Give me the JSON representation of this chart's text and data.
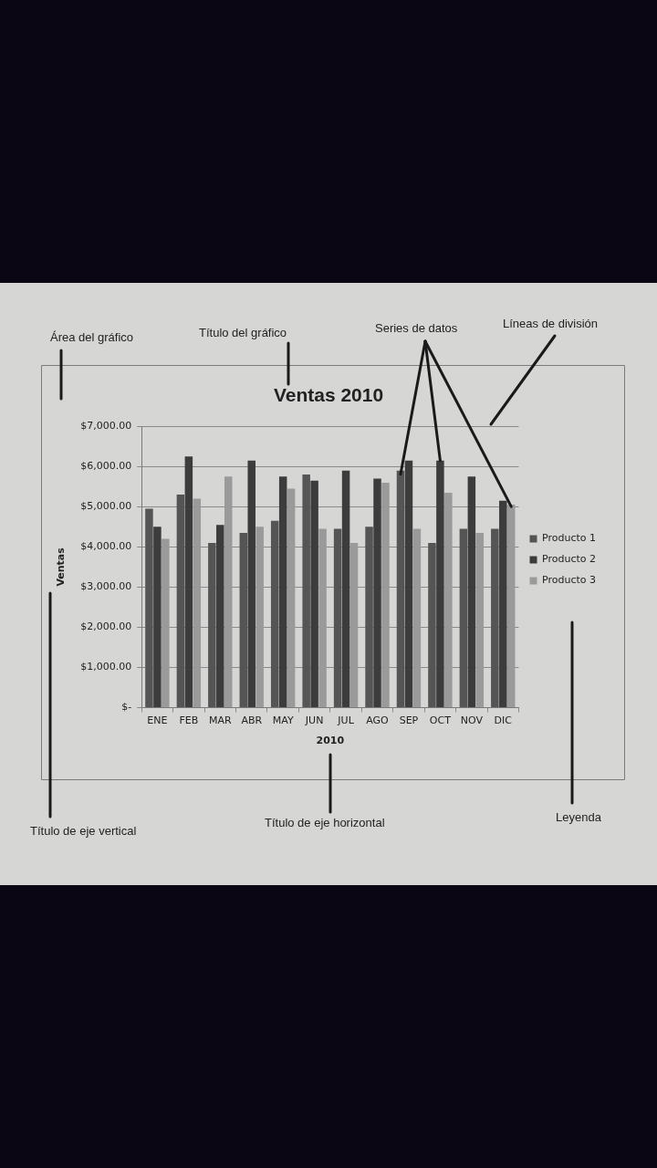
{
  "chart_data": {
    "type": "bar",
    "title": "Ventas 2010",
    "xlabel": "2010",
    "ylabel": "Ventas",
    "categories": [
      "ENE",
      "FEB",
      "MAR",
      "ABR",
      "MAY",
      "JUN",
      "JUL",
      "AGO",
      "SEP",
      "OCT",
      "NOV",
      "DIC"
    ],
    "series": [
      {
        "name": "Producto 1",
        "color": "#555555",
        "values": [
          4950,
          5300,
          4100,
          4350,
          4650,
          5800,
          4450,
          4500,
          5900,
          4100,
          4450,
          4450
        ]
      },
      {
        "name": "Producto 2",
        "color": "#3c3c3c",
        "values": [
          4500,
          6250,
          4550,
          6150,
          5750,
          5650,
          5900,
          5700,
          6150,
          6150,
          5750,
          5150
        ]
      },
      {
        "name": "Producto 3",
        "color": "#9a9a9a",
        "values": [
          4200,
          5200,
          5750,
          4500,
          5450,
          4450,
          4100,
          5600,
          4450,
          5350,
          4350,
          5050
        ]
      }
    ],
    "ylim": [
      0,
      7000
    ],
    "yticks": [
      {
        "value": 0,
        "label": "$-"
      },
      {
        "value": 1000,
        "label": "$1,000.00"
      },
      {
        "value": 2000,
        "label": "$2,000.00"
      },
      {
        "value": 3000,
        "label": "$3,000.00"
      },
      {
        "value": 4000,
        "label": "$4,000.00"
      },
      {
        "value": 5000,
        "label": "$5,000.00"
      },
      {
        "value": 6000,
        "label": "$6,000.00"
      },
      {
        "value": 7000,
        "label": "$7,000.00"
      }
    ],
    "grid": "y",
    "legend": "right",
    "annotations": [
      "Área del gráfico",
      "Título del gráfico",
      {
        "text": "Series de datos",
        "x": "OCT",
        "y": 6150
      },
      "Líneas de división",
      "Título de eje vertical",
      "Título de eje horizontal",
      "Leyenda"
    ]
  }
}
